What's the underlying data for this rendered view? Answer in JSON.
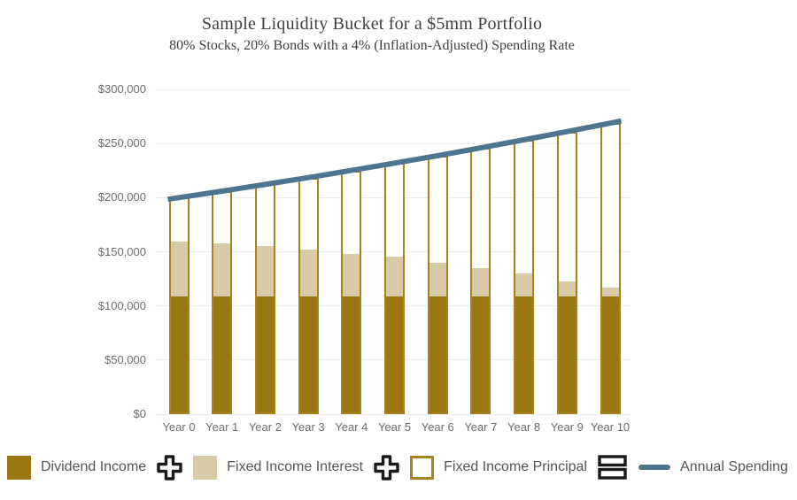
{
  "chart": {
    "title": "Sample Liquidity Bucket for a $5mm Portfolio",
    "subtitle": "80% Stocks, 20% Bonds with a 4% (Inflation-Adjusted) Spending Rate"
  },
  "legend": {
    "items": [
      {
        "label": "Dividend Income",
        "swatch": "filled",
        "color": "#9B7712"
      },
      {
        "label": "Fixed Income Interest",
        "swatch": "filled",
        "color": "#D8CAA6"
      },
      {
        "label": "Fixed Income Principal",
        "swatch": "outlined",
        "color": "#FFFFFF",
        "border": "#A8821C"
      },
      {
        "label": "Annual Spending",
        "swatch": "line",
        "color": "#4D7590"
      }
    ],
    "operators": [
      "plus",
      "plus",
      "equals"
    ],
    "operator_color": "#1b1b1b"
  },
  "chart_data": {
    "type": "bar",
    "stacked": true,
    "title": "Sample Liquidity Bucket for a $5mm Portfolio",
    "subtitle": "80% Stocks, 20% Bonds with a 4% (Inflation-Adjusted) Spending Rate",
    "categories": [
      "Year 0",
      "Year 1",
      "Year 2",
      "Year 3",
      "Year 4",
      "Year 5",
      "Year 6",
      "Year 7",
      "Year 8",
      "Year 9",
      "Year 10"
    ],
    "series": [
      {
        "name": "Dividend Income",
        "color": "#9B7712",
        "values": [
          107000,
          107000,
          107000,
          107000,
          107000,
          107000,
          107000,
          107000,
          107000,
          107000,
          107000
        ]
      },
      {
        "name": "Fixed Income Interest",
        "color": "#D8CAA6",
        "values": [
          51000,
          49500,
          46500,
          43500,
          39500,
          36500,
          31500,
          26000,
          21000,
          14000,
          8000
        ]
      },
      {
        "name": "Fixed Income Principal",
        "color": "#FFFFFF",
        "values": [
          42000,
          49500,
          58700,
          68000,
          78600,
          88400,
          100300,
          113000,
          125400,
          140000,
          153800
        ]
      }
    ],
    "line_series": {
      "name": "Annual Spending",
      "color": "#4D7590",
      "values": [
        200000,
        206000,
        212200,
        218500,
        225100,
        231900,
        238800,
        246000,
        253400,
        261000,
        268800
      ]
    },
    "bar_outline_color": "#A8821C",
    "y_ticks": [
      "$0",
      "$50,000",
      "$100,000",
      "$150,000",
      "$200,000",
      "$250,000",
      "$300,000"
    ],
    "y_tick_values": [
      0,
      50000,
      100000,
      150000,
      200000,
      250000,
      300000
    ],
    "ylim": [
      0,
      300000
    ],
    "xlabel": "",
    "ylabel": "",
    "grid": true,
    "legend_position": "bottom"
  }
}
